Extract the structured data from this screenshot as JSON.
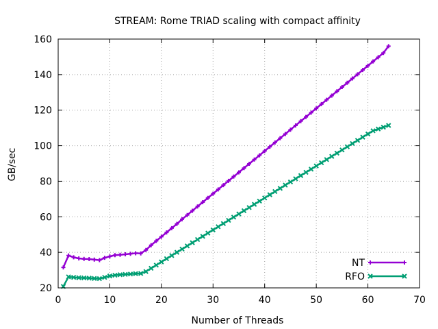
{
  "chart_data": {
    "type": "line",
    "title": "STREAM: Rome TRIAD scaling with compact affinity",
    "xlabel": "Number of Threads",
    "ylabel": "GB/sec",
    "xlim": [
      0,
      70
    ],
    "ylim": [
      20,
      160
    ],
    "xticks": [
      0,
      10,
      20,
      30,
      40,
      50,
      60,
      70
    ],
    "yticks": [
      20,
      40,
      60,
      80,
      100,
      120,
      140,
      160
    ],
    "grid": true,
    "legend_position": "bottom-right",
    "series": [
      {
        "name": "NT",
        "color": "#9400d3",
        "marker": "plus",
        "x": [
          1,
          2,
          3,
          4,
          5,
          6,
          7,
          8,
          9,
          10,
          11,
          12,
          13,
          14,
          15,
          16,
          17,
          18,
          19,
          20,
          21,
          22,
          23,
          24,
          25,
          26,
          27,
          28,
          29,
          30,
          31,
          32,
          33,
          34,
          35,
          36,
          37,
          38,
          39,
          40,
          41,
          42,
          43,
          44,
          45,
          46,
          47,
          48,
          49,
          50,
          51,
          52,
          53,
          54,
          55,
          56,
          57,
          58,
          59,
          60,
          61,
          62,
          63,
          64
        ],
        "y": [
          31.5,
          38.2,
          37.2,
          36.6,
          36.3,
          36.2,
          35.9,
          35.6,
          36.9,
          37.7,
          38.4,
          38.6,
          38.9,
          39.2,
          39.5,
          39.4,
          41.3,
          44.0,
          46.4,
          48.8,
          51.2,
          53.6,
          56.0,
          58.6,
          61.0,
          63.4,
          65.8,
          68.2,
          70.6,
          73.0,
          75.4,
          77.8,
          80.2,
          82.6,
          85.0,
          87.4,
          89.8,
          92.2,
          94.6,
          97.0,
          99.4,
          101.8,
          104.2,
          106.6,
          109.0,
          111.4,
          113.8,
          116.2,
          118.6,
          121.0,
          123.4,
          125.8,
          128.2,
          130.6,
          133.0,
          135.4,
          137.8,
          140.2,
          142.6,
          145.0,
          147.4,
          149.8,
          152.2,
          156.0
        ]
      },
      {
        "name": "RFO",
        "color": "#009e73",
        "marker": "cross",
        "x": [
          1,
          2,
          3,
          4,
          5,
          6,
          7,
          8,
          9,
          10,
          11,
          12,
          13,
          14,
          15,
          16,
          17,
          18,
          19,
          20,
          21,
          22,
          23,
          24,
          25,
          26,
          27,
          28,
          29,
          30,
          31,
          32,
          33,
          34,
          35,
          36,
          37,
          38,
          39,
          40,
          41,
          42,
          43,
          44,
          45,
          46,
          47,
          48,
          49,
          50,
          51,
          52,
          53,
          54,
          55,
          56,
          57,
          58,
          59,
          60,
          61,
          62,
          63,
          64
        ],
        "y": [
          20.8,
          26.2,
          25.9,
          25.7,
          25.6,
          25.5,
          25.3,
          25.2,
          25.9,
          26.7,
          27.1,
          27.4,
          27.6,
          27.8,
          28.0,
          28.1,
          29.2,
          31.0,
          32.8,
          34.6,
          36.4,
          38.2,
          40.0,
          41.8,
          43.6,
          45.4,
          47.2,
          49.0,
          50.8,
          52.6,
          54.4,
          56.2,
          58.0,
          59.8,
          61.6,
          63.4,
          65.2,
          67.0,
          68.8,
          70.6,
          72.4,
          74.2,
          76.0,
          77.8,
          79.6,
          81.4,
          83.2,
          85.0,
          86.8,
          88.6,
          90.4,
          92.2,
          94.0,
          95.8,
          97.6,
          99.4,
          101.2,
          103.0,
          104.8,
          106.6,
          108.4,
          109.4,
          110.4,
          111.4
        ]
      }
    ]
  }
}
